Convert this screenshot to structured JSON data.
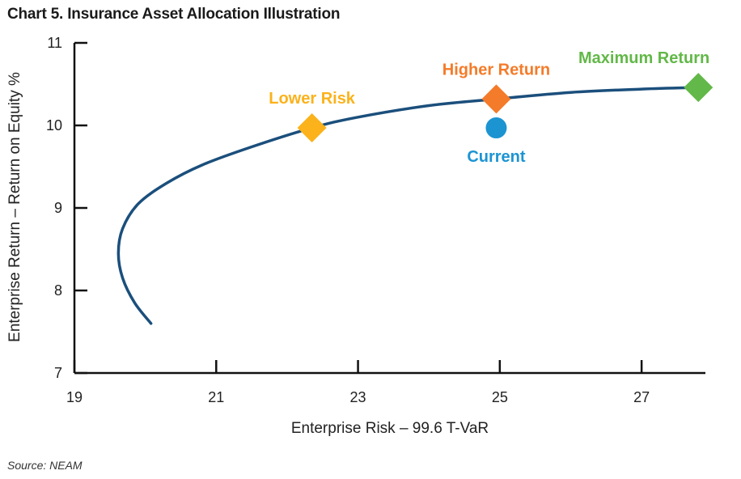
{
  "title": "Chart 5. Insurance Asset Allocation Illustration",
  "source": "Source: NEAM",
  "chart_data": {
    "type": "scatter",
    "title": "Chart 5. Insurance Asset Allocation Illustration",
    "xlabel": "Enterprise Risk – 99.6 T-VaR",
    "ylabel": "Enterprise Return – Return on Equity %",
    "xlim": [
      19,
      27.9
    ],
    "ylim": [
      7,
      11
    ],
    "xticks": [
      19,
      21,
      23,
      25,
      27
    ],
    "yticks": [
      7,
      8,
      9,
      10,
      11
    ],
    "grid": false,
    "frontier": {
      "points": [
        [
          20.08,
          7.6
        ],
        [
          19.85,
          7.85
        ],
        [
          19.68,
          8.15
        ],
        [
          19.62,
          8.45
        ],
        [
          19.68,
          8.75
        ],
        [
          19.9,
          9.05
        ],
        [
          20.3,
          9.3
        ],
        [
          20.8,
          9.52
        ],
        [
          21.5,
          9.74
        ],
        [
          22.35,
          9.97
        ],
        [
          23.0,
          10.1
        ],
        [
          24.0,
          10.24
        ],
        [
          24.95,
          10.32
        ],
        [
          26.0,
          10.4
        ],
        [
          27.0,
          10.44
        ],
        [
          27.8,
          10.46
        ]
      ],
      "color": "#1b4f7c"
    },
    "markers": [
      {
        "label": "Lower Risk",
        "x": 22.35,
        "y": 9.97,
        "shape": "diamond",
        "color": "#fbb21b",
        "label_pos": "above"
      },
      {
        "label": "Higher Return",
        "x": 24.95,
        "y": 10.32,
        "shape": "diamond",
        "color": "#f47b29",
        "label_pos": "above"
      },
      {
        "label": "Maximum Return",
        "x": 27.8,
        "y": 10.46,
        "shape": "diamond",
        "color": "#62b848",
        "label_pos": "above"
      },
      {
        "label": "Current",
        "x": 24.95,
        "y": 9.97,
        "shape": "circle",
        "color": "#1c94d2",
        "label_pos": "below"
      }
    ]
  }
}
